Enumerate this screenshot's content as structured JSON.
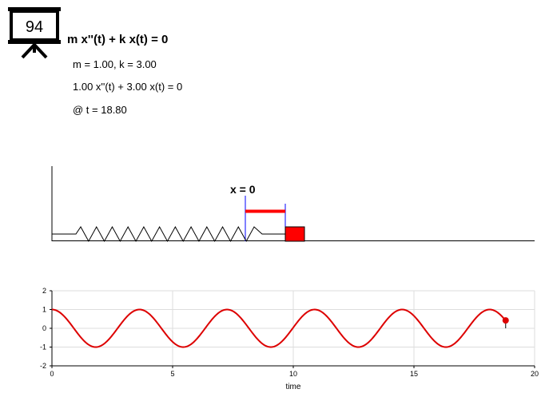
{
  "slide": {
    "number": "94"
  },
  "equation": {
    "title": "m x''(t) + k x(t) = 0",
    "params": "m = 1.00, k = 3.00",
    "instantiated": "1.00 x''(t) + 3.00 x(t) = 0",
    "time": "@ t = 18.80"
  },
  "simulation": {
    "origin_label": "x = 0",
    "block_color": "#ff0000",
    "spring_color": "#000000",
    "displacement_color": "#ff0000"
  },
  "chart_data": {
    "type": "line",
    "title": "",
    "xlabel": "time",
    "ylabel": "",
    "xlim": [
      0,
      20
    ],
    "ylim": [
      -2,
      2
    ],
    "xticks": [
      0,
      5,
      10,
      15,
      20
    ],
    "yticks": [
      -2,
      -1,
      0,
      1,
      2
    ],
    "grid": true,
    "series": [
      {
        "function": "cos(sqrt(k/m) * t)",
        "k": 3.0,
        "m": 1.0,
        "amplitude": 1.0,
        "t_start": 0,
        "t_end": 18.8,
        "color": "#dd0000"
      }
    ],
    "current_point": {
      "t": 18.8,
      "x": 0.42
    }
  }
}
